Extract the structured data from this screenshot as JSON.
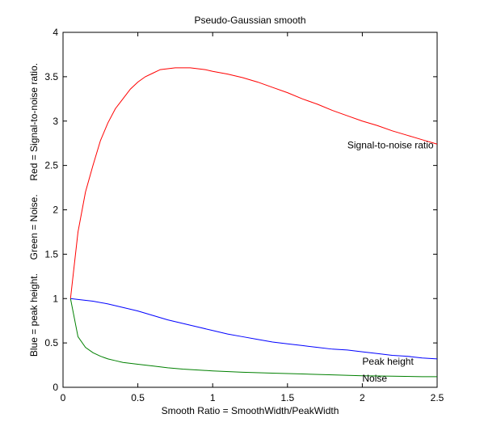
{
  "chart_data": {
    "type": "line",
    "title": "Pseudo-Gaussian smooth",
    "xlabel": "Smooth Ratio = SmoothWidth/PeakWidth",
    "ylabel": "Blue = peak height.     Green = Noise.     Red = Signal-to-noise ratio.",
    "xlim": [
      0,
      2.5
    ],
    "ylim": [
      0,
      4
    ],
    "xticks": [
      "0",
      "0.5",
      "1",
      "1.5",
      "2",
      "2.5"
    ],
    "yticks": [
      "0",
      "0.5",
      "1",
      "1.5",
      "2",
      "2.5",
      "3",
      "3.5",
      "4"
    ],
    "grid": false,
    "series": [
      {
        "name": "Signal-to-noise ratio",
        "color": "#ff0000",
        "x": [
          0.05,
          0.1,
          0.15,
          0.2,
          0.25,
          0.3,
          0.35,
          0.4,
          0.45,
          0.5,
          0.55,
          0.6,
          0.65,
          0.7,
          0.75,
          0.8,
          0.85,
          0.9,
          0.95,
          1.0,
          1.1,
          1.2,
          1.3,
          1.4,
          1.5,
          1.6,
          1.7,
          1.8,
          1.9,
          2.0,
          2.1,
          2.2,
          2.3,
          2.4,
          2.5
        ],
        "y": [
          1.0,
          1.75,
          2.2,
          2.5,
          2.78,
          2.98,
          3.14,
          3.25,
          3.36,
          3.44,
          3.5,
          3.54,
          3.58,
          3.59,
          3.6,
          3.6,
          3.6,
          3.59,
          3.58,
          3.56,
          3.53,
          3.49,
          3.44,
          3.38,
          3.32,
          3.25,
          3.19,
          3.12,
          3.06,
          3.0,
          2.95,
          2.89,
          2.84,
          2.79,
          2.74
        ]
      },
      {
        "name": "Peak height",
        "color": "#0000ff",
        "x": [
          0.05,
          0.1,
          0.2,
          0.3,
          0.4,
          0.5,
          0.6,
          0.7,
          0.8,
          0.9,
          1.0,
          1.1,
          1.2,
          1.3,
          1.4,
          1.5,
          1.6,
          1.7,
          1.8,
          1.9,
          2.0,
          2.1,
          2.2,
          2.3,
          2.4,
          2.5
        ],
        "y": [
          1.0,
          0.99,
          0.97,
          0.94,
          0.9,
          0.86,
          0.81,
          0.76,
          0.72,
          0.68,
          0.64,
          0.6,
          0.57,
          0.54,
          0.51,
          0.49,
          0.47,
          0.45,
          0.43,
          0.42,
          0.4,
          0.38,
          0.36,
          0.35,
          0.33,
          0.32
        ]
      },
      {
        "name": "Noise",
        "color": "#008000",
        "x": [
          0.05,
          0.1,
          0.15,
          0.2,
          0.25,
          0.3,
          0.35,
          0.4,
          0.5,
          0.6,
          0.7,
          0.8,
          0.9,
          1.0,
          1.2,
          1.4,
          1.6,
          1.8,
          2.0,
          2.2,
          2.4,
          2.5
        ],
        "y": [
          1.0,
          0.57,
          0.45,
          0.39,
          0.35,
          0.32,
          0.3,
          0.28,
          0.26,
          0.24,
          0.22,
          0.205,
          0.195,
          0.185,
          0.17,
          0.16,
          0.15,
          0.14,
          0.13,
          0.125,
          0.12,
          0.12
        ]
      }
    ],
    "annotations": [
      {
        "text": "Signal-to-noise ratio",
        "x": 1.9,
        "y": 2.73
      },
      {
        "text": "Peak height",
        "x": 2.0,
        "y": 0.29
      },
      {
        "text": "Noise",
        "x": 2.0,
        "y": 0.1
      }
    ]
  }
}
